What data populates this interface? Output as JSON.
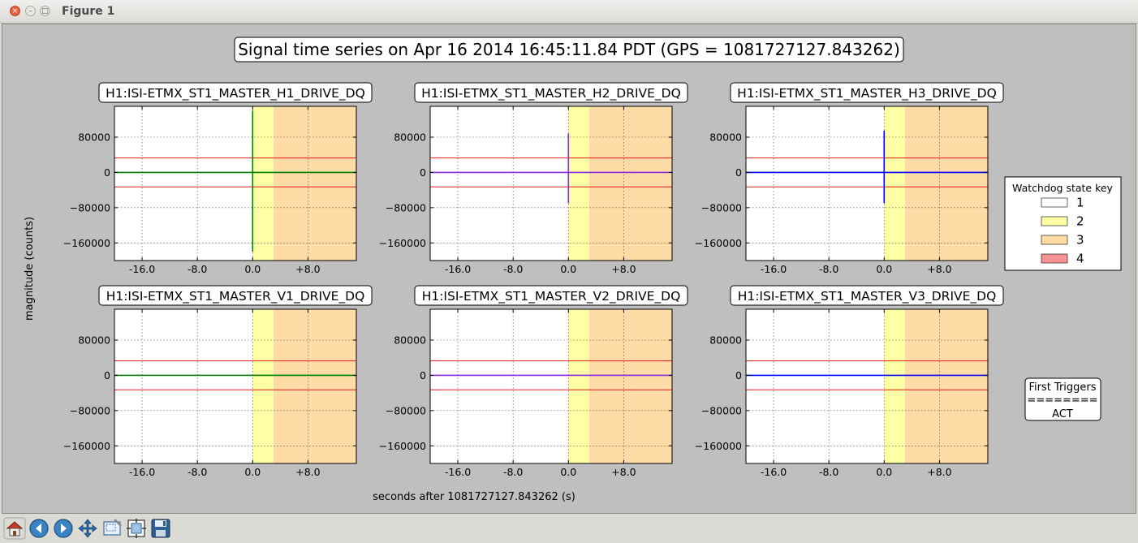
{
  "window": {
    "title": "Figure 1",
    "close_glyph": "×",
    "min_glyph": "–",
    "max_glyph": "□"
  },
  "toolbar": {
    "buttons": [
      "home-icon",
      "back-icon",
      "forward-icon",
      "pan-icon",
      "zoom-icon",
      "configure-subplots-icon",
      "save-icon"
    ]
  },
  "colors": {
    "figure_bg": "#bfbfbf",
    "state_1": "#ffffff",
    "state_2": "#ffffa6",
    "state_3": "#ffdca6",
    "state_4": "#f79393",
    "threshold_line": "#e41a1c",
    "green_trace": "#007f00",
    "purple_trace": "#8a2be2",
    "blue_trace": "#0000ff"
  },
  "figure_title": "Signal time series on Apr 16 2014 16:45:11.84 PDT (GPS = 1081727127.843262)",
  "xlabel": "seconds after 1081727127.843262 (s)",
  "ylabel": "magnitude (counts)",
  "legend": {
    "title": "Watchdog state key",
    "entries": [
      {
        "label": "1",
        "color": "#ffffff"
      },
      {
        "label": "2",
        "color": "#ffffa6"
      },
      {
        "label": "3",
        "color": "#ffdca6"
      },
      {
        "label": "4",
        "color": "#f79393"
      }
    ]
  },
  "first_triggers": {
    "line1": "First Triggers",
    "line2": "========",
    "line3": "ACT"
  },
  "chart_data": [
    {
      "type": "line",
      "title": "H1:ISI-ETMX_ST1_MASTER_H1_DRIVE_DQ",
      "xlim": [
        -20,
        15
      ],
      "ylim": [
        -200000,
        150000
      ],
      "xticks": [
        -16,
        -8,
        0,
        8
      ],
      "xticklabels": [
        "-16.0",
        "-8.0",
        "0.0",
        "+8.0"
      ],
      "yticks": [
        80000,
        0,
        -80000,
        -160000
      ],
      "yticklabels": [
        "80000",
        "0",
        "−80000",
        "−160000"
      ],
      "state_spans": [
        {
          "state": 2,
          "x": [
            0,
            3
          ]
        },
        {
          "state": 3,
          "x": [
            3,
            15
          ]
        }
      ],
      "thresholds": [
        32768,
        -32768
      ],
      "trace_color": "#007f00",
      "trace": {
        "baseline": 0,
        "spike_x": 0.0,
        "spike_max": 140000,
        "spike_min": -180000
      }
    },
    {
      "type": "line",
      "title": "H1:ISI-ETMX_ST1_MASTER_H2_DRIVE_DQ",
      "xlim": [
        -20,
        15
      ],
      "ylim": [
        -200000,
        150000
      ],
      "xticks": [
        -16,
        -8,
        0,
        8
      ],
      "xticklabels": [
        "-16.0",
        "-8.0",
        "0.0",
        "+8.0"
      ],
      "yticks": [
        80000,
        0,
        -80000,
        -160000
      ],
      "yticklabels": [
        "80000",
        "0",
        "−80000",
        "−160000"
      ],
      "state_spans": [
        {
          "state": 2,
          "x": [
            0,
            3
          ]
        },
        {
          "state": 3,
          "x": [
            3,
            15
          ]
        }
      ],
      "thresholds": [
        32768,
        -32768
      ],
      "trace_color": "#8a2be2",
      "trace": {
        "baseline": 0,
        "spike_x": 0.0,
        "spike_max": 88000,
        "spike_min": -70000
      }
    },
    {
      "type": "line",
      "title": "H1:ISI-ETMX_ST1_MASTER_H3_DRIVE_DQ",
      "xlim": [
        -20,
        15
      ],
      "ylim": [
        -200000,
        150000
      ],
      "xticks": [
        -16,
        -8,
        0,
        8
      ],
      "xticklabels": [
        "-16.0",
        "-8.0",
        "0.0",
        "+8.0"
      ],
      "yticks": [
        80000,
        0,
        -80000,
        -160000
      ],
      "yticklabels": [
        "80000",
        "0",
        "−80000",
        "−160000"
      ],
      "state_spans": [
        {
          "state": 2,
          "x": [
            0,
            3
          ]
        },
        {
          "state": 3,
          "x": [
            3,
            15
          ]
        }
      ],
      "thresholds": [
        32768,
        -32768
      ],
      "trace_color": "#0000ff",
      "trace": {
        "baseline": 0,
        "spike_x": 0.0,
        "spike_max": 95000,
        "spike_min": -70000
      }
    },
    {
      "type": "line",
      "title": "H1:ISI-ETMX_ST1_MASTER_V1_DRIVE_DQ",
      "xlim": [
        -20,
        15
      ],
      "ylim": [
        -200000,
        150000
      ],
      "xticks": [
        -16,
        -8,
        0,
        8
      ],
      "xticklabels": [
        "-16.0",
        "-8.0",
        "0.0",
        "+8.0"
      ],
      "yticks": [
        80000,
        0,
        -80000,
        -160000
      ],
      "yticklabels": [
        "80000",
        "0",
        "−80000",
        "−160000"
      ],
      "state_spans": [
        {
          "state": 2,
          "x": [
            0,
            3
          ]
        },
        {
          "state": 3,
          "x": [
            3,
            15
          ]
        }
      ],
      "thresholds": [
        32768,
        -32768
      ],
      "trace_color": "#007f00",
      "trace": {
        "baseline": 0,
        "spike_x": 0.0,
        "spike_max": 0,
        "spike_min": 0
      }
    },
    {
      "type": "line",
      "title": "H1:ISI-ETMX_ST1_MASTER_V2_DRIVE_DQ",
      "xlim": [
        -20,
        15
      ],
      "ylim": [
        -200000,
        150000
      ],
      "xticks": [
        -16,
        -8,
        0,
        8
      ],
      "xticklabels": [
        "-16.0",
        "-8.0",
        "0.0",
        "+8.0"
      ],
      "yticks": [
        80000,
        0,
        -80000,
        -160000
      ],
      "yticklabels": [
        "80000",
        "0",
        "−80000",
        "−160000"
      ],
      "state_spans": [
        {
          "state": 2,
          "x": [
            0,
            3
          ]
        },
        {
          "state": 3,
          "x": [
            3,
            15
          ]
        }
      ],
      "thresholds": [
        32768,
        -32768
      ],
      "trace_color": "#8a2be2",
      "trace": {
        "baseline": 0,
        "spike_x": 0.0,
        "spike_max": 0,
        "spike_min": 0
      }
    },
    {
      "type": "line",
      "title": "H1:ISI-ETMX_ST1_MASTER_V3_DRIVE_DQ",
      "xlim": [
        -20,
        15
      ],
      "ylim": [
        -200000,
        150000
      ],
      "xticks": [
        -16,
        -8,
        0,
        8
      ],
      "xticklabels": [
        "-16.0",
        "-8.0",
        "0.0",
        "+8.0"
      ],
      "yticks": [
        80000,
        0,
        -80000,
        -160000
      ],
      "yticklabels": [
        "80000",
        "0",
        "−80000",
        "−160000"
      ],
      "state_spans": [
        {
          "state": 2,
          "x": [
            0,
            3
          ]
        },
        {
          "state": 3,
          "x": [
            3,
            15
          ]
        }
      ],
      "thresholds": [
        32768,
        -32768
      ],
      "trace_color": "#0000ff",
      "trace": {
        "baseline": 0,
        "spike_x": 0.0,
        "spike_max": 0,
        "spike_min": 0
      }
    }
  ]
}
